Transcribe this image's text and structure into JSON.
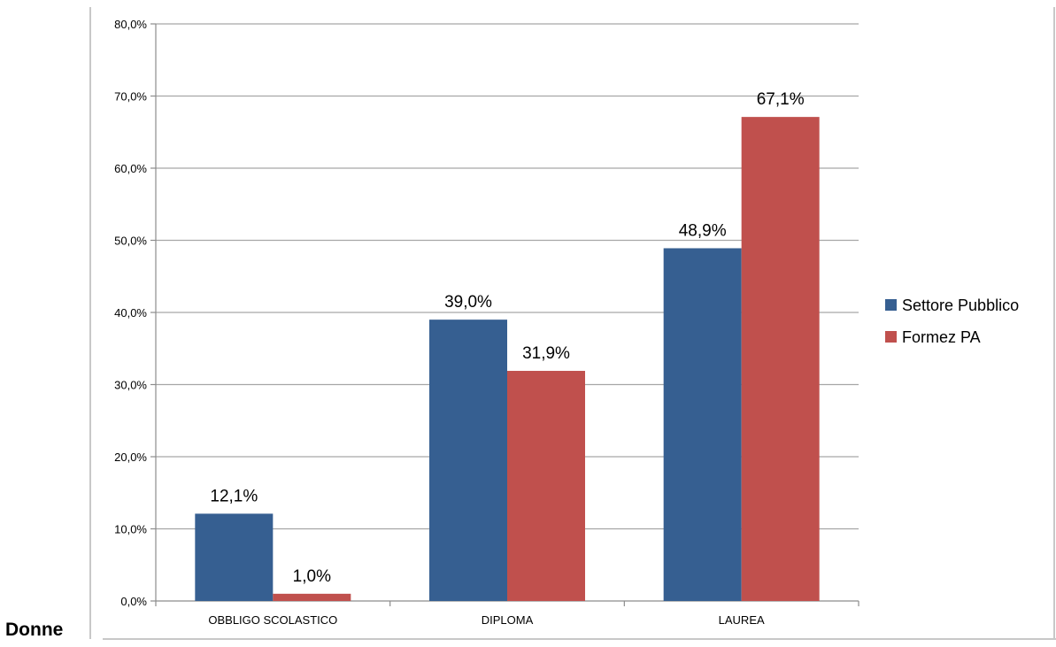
{
  "side_label": "Donne",
  "chart_data": {
    "type": "bar",
    "title": "",
    "xlabel": "",
    "ylabel": "",
    "categories": [
      "OBBLIGO SCOLASTICO",
      "DIPLOMA",
      "LAUREA"
    ],
    "series": [
      {
        "name": "Settore Pubblico",
        "values": [
          12.1,
          39.0,
          48.9
        ],
        "labels": [
          "12,1%",
          "39,0%",
          "48,9%"
        ],
        "color": "#365F91"
      },
      {
        "name": "Formez PA",
        "values": [
          1.0,
          31.9,
          67.1
        ],
        "labels": [
          "1,0%",
          "31,9%",
          "67,1%"
        ],
        "color": "#C0504D"
      }
    ],
    "ylim": [
      0,
      80
    ],
    "yticks": [
      0,
      10,
      20,
      30,
      40,
      50,
      60,
      70,
      80
    ],
    "ytick_labels": [
      "0,0%",
      "10,0%",
      "20,0%",
      "30,0%",
      "40,0%",
      "50,0%",
      "60,0%",
      "70,0%",
      "80,0%"
    ],
    "grid": true,
    "legend_position": "right",
    "gridline_color": "#A6A6A6",
    "frame_color": "#C8C8C8"
  }
}
